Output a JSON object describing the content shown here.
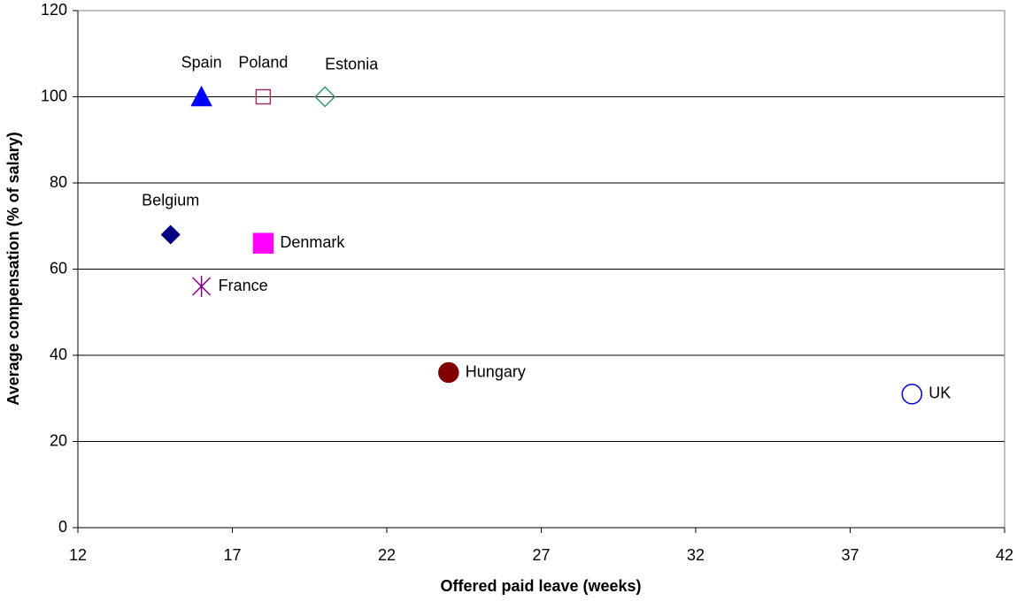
{
  "chart_data": {
    "type": "scatter",
    "x_label": "Offered paid leave (weeks)",
    "y_label": "Average compensation (% of salary)",
    "xlim": [
      12,
      42
    ],
    "xticks": [
      12,
      17,
      22,
      27,
      32,
      37,
      42
    ],
    "ylim": [
      0,
      120
    ],
    "yticks": [
      0,
      20,
      40,
      60,
      80,
      100,
      120
    ],
    "grid": true,
    "series": [
      {
        "name": "Spain",
        "color": "#0000ff",
        "marker": "triangle",
        "filled": true,
        "x": [
          16
        ],
        "y": [
          100
        ]
      },
      {
        "name": "Poland",
        "color": "#993366",
        "marker": "square",
        "filled": false,
        "x": [
          18
        ],
        "y": [
          100
        ]
      },
      {
        "name": "Estonia",
        "color": "#339966",
        "marker": "diamond",
        "filled": false,
        "x": [
          20
        ],
        "y": [
          100
        ]
      },
      {
        "name": "Belgium",
        "color": "#000080",
        "marker": "diamond",
        "filled": true,
        "x": [
          15
        ],
        "y": [
          68
        ]
      },
      {
        "name": "Denmark",
        "color": "#ff00ff",
        "marker": "square",
        "filled": true,
        "x": [
          18
        ],
        "y": [
          66
        ]
      },
      {
        "name": "France",
        "color": "#800080",
        "marker": "asterisk",
        "filled": false,
        "x": [
          16
        ],
        "y": [
          56
        ]
      },
      {
        "name": "Hungary",
        "color": "#800000",
        "marker": "circle",
        "filled": true,
        "x": [
          24
        ],
        "y": [
          36
        ]
      },
      {
        "name": "UK",
        "color": "#0000cc",
        "marker": "circle",
        "filled": false,
        "x": [
          39
        ],
        "y": [
          31
        ]
      }
    ]
  }
}
